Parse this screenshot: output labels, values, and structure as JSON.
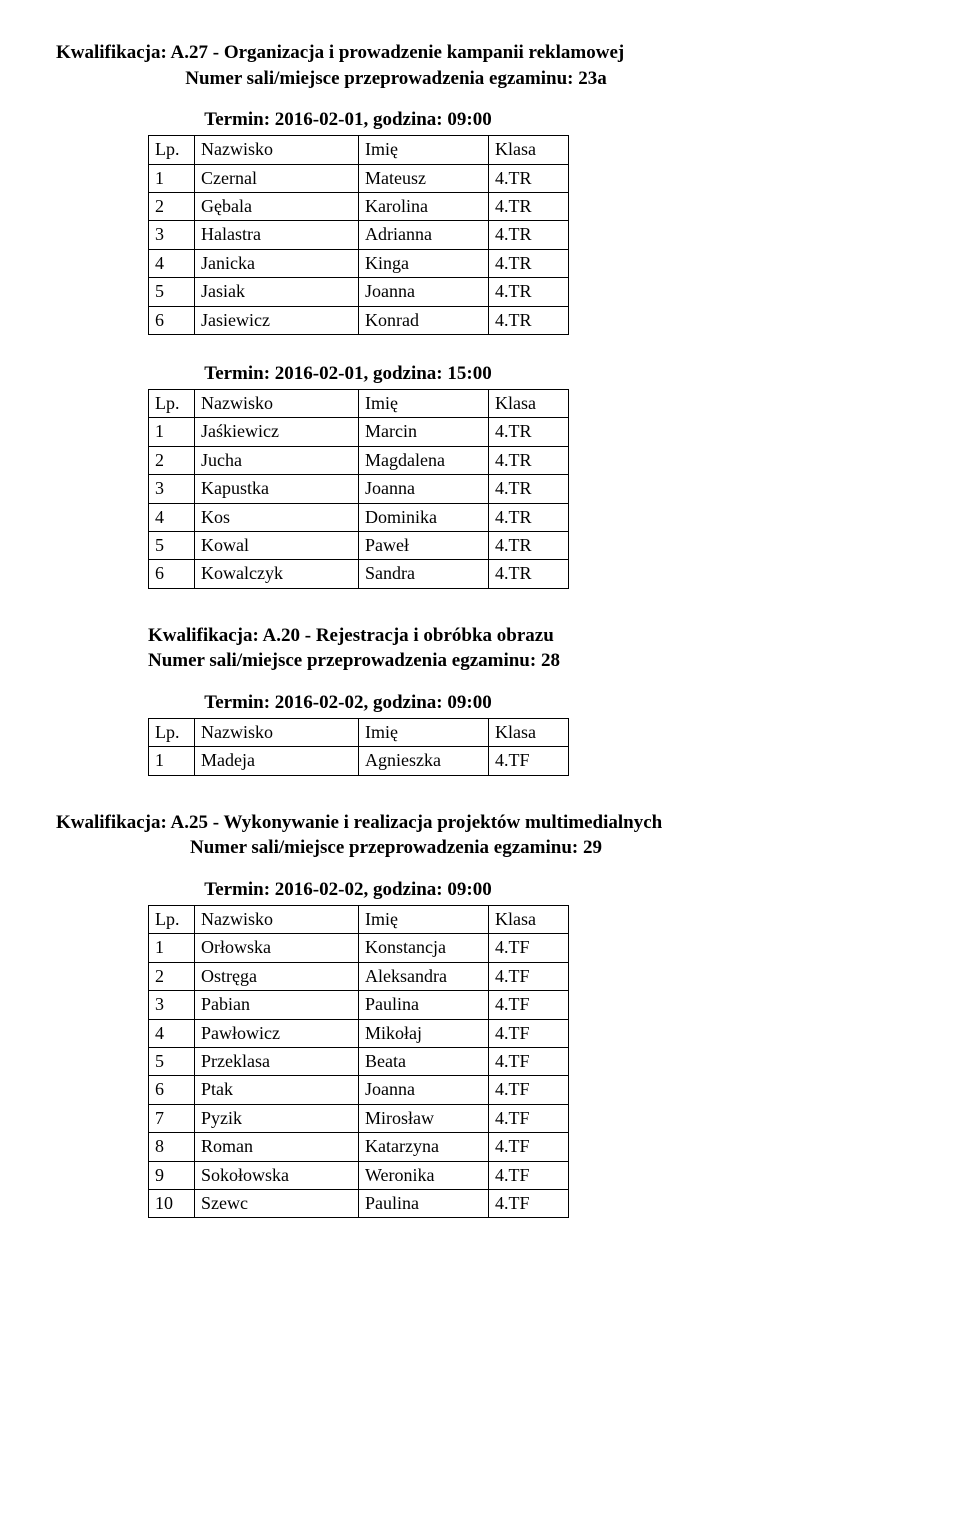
{
  "sections": [
    {
      "indent": "left",
      "title_line1": "Kwalifikacja: A.27 - Organizacja i prowadzenie kampanii reklamowej",
      "title_line2": "Numer sali/miejsce przeprowadzenia egzaminu: 23a",
      "groups": [
        {
          "termin": "Termin: 2016-02-01, godzina: 09:00",
          "header": {
            "lp": "Lp.",
            "nazwisko": "Nazwisko",
            "imie": "Imię",
            "klasa": "Klasa"
          },
          "rows": [
            {
              "lp": "1",
              "nazwisko": "Czernal",
              "imie": "Mateusz",
              "klasa": "4.TR"
            },
            {
              "lp": "2",
              "nazwisko": "Gębala",
              "imie": "Karolina",
              "klasa": "4.TR"
            },
            {
              "lp": "3",
              "nazwisko": "Halastra",
              "imie": "Adrianna",
              "klasa": "4.TR"
            },
            {
              "lp": "4",
              "nazwisko": "Janicka",
              "imie": "Kinga",
              "klasa": "4.TR"
            },
            {
              "lp": "5",
              "nazwisko": "Jasiak",
              "imie": "Joanna",
              "klasa": "4.TR"
            },
            {
              "lp": "6",
              "nazwisko": "Jasiewicz",
              "imie": "Konrad",
              "klasa": "4.TR"
            }
          ]
        },
        {
          "termin": "Termin: 2016-02-01, godzina: 15:00",
          "header": {
            "lp": "Lp.",
            "nazwisko": "Nazwisko",
            "imie": "Imię",
            "klasa": "Klasa"
          },
          "rows": [
            {
              "lp": "1",
              "nazwisko": "Jaśkiewicz",
              "imie": "Marcin",
              "klasa": "4.TR"
            },
            {
              "lp": "2",
              "nazwisko": "Jucha",
              "imie": "Magdalena",
              "klasa": "4.TR"
            },
            {
              "lp": "3",
              "nazwisko": "Kapustka",
              "imie": "Joanna",
              "klasa": "4.TR"
            },
            {
              "lp": "4",
              "nazwisko": "Kos",
              "imie": "Dominika",
              "klasa": "4.TR"
            },
            {
              "lp": "5",
              "nazwisko": "Kowal",
              "imie": "Paweł",
              "klasa": "4.TR"
            },
            {
              "lp": "6",
              "nazwisko": "Kowalczyk",
              "imie": "Sandra",
              "klasa": "4.TR"
            }
          ]
        }
      ]
    },
    {
      "indent": "center",
      "title_line1": "Kwalifikacja: A.20 - Rejestracja i obróbka obrazu",
      "title_line2": "Numer sali/miejsce przeprowadzenia egzaminu: 28",
      "groups": [
        {
          "termin": "Termin: 2016-02-02, godzina: 09:00",
          "header": {
            "lp": "Lp.",
            "nazwisko": "Nazwisko",
            "imie": "Imię",
            "klasa": "Klasa"
          },
          "rows": [
            {
              "lp": "1",
              "nazwisko": "Madeja",
              "imie": "Agnieszka",
              "klasa": "4.TF"
            }
          ]
        }
      ]
    },
    {
      "indent": "left",
      "title_line1": "Kwalifikacja: A.25 - Wykonywanie i realizacja projektów multimedialnych",
      "title_line2": "Numer sali/miejsce przeprowadzenia egzaminu: 29",
      "groups": [
        {
          "termin": "Termin: 2016-02-02, godzina: 09:00",
          "header": {
            "lp": "Lp.",
            "nazwisko": "Nazwisko",
            "imie": "Imię",
            "klasa": "Klasa"
          },
          "rows": [
            {
              "lp": "1",
              "nazwisko": "Orłowska",
              "imie": "Konstancja",
              "klasa": "4.TF"
            },
            {
              "lp": "2",
              "nazwisko": "Ostręga",
              "imie": "Aleksandra",
              "klasa": "4.TF"
            },
            {
              "lp": "3",
              "nazwisko": "Pabian",
              "imie": "Paulina",
              "klasa": "4.TF"
            },
            {
              "lp": "4",
              "nazwisko": "Pawłowicz",
              "imie": "Mikołaj",
              "klasa": "4.TF"
            },
            {
              "lp": "5",
              "nazwisko": "Przeklasa",
              "imie": "Beata",
              "klasa": "4.TF"
            },
            {
              "lp": "6",
              "nazwisko": "Ptak",
              "imie": "Joanna",
              "klasa": "4.TF"
            },
            {
              "lp": "7",
              "nazwisko": "Pyzik",
              "imie": "Mirosław",
              "klasa": "4.TF"
            },
            {
              "lp": "8",
              "nazwisko": "Roman",
              "imie": "Katarzyna",
              "klasa": "4.TF"
            },
            {
              "lp": "9",
              "nazwisko": "Sokołowska",
              "imie": "Weronika",
              "klasa": "4.TF"
            },
            {
              "lp": "10",
              "nazwisko": "Szewc",
              "imie": "Paulina",
              "klasa": "4.TF"
            }
          ]
        }
      ]
    }
  ]
}
